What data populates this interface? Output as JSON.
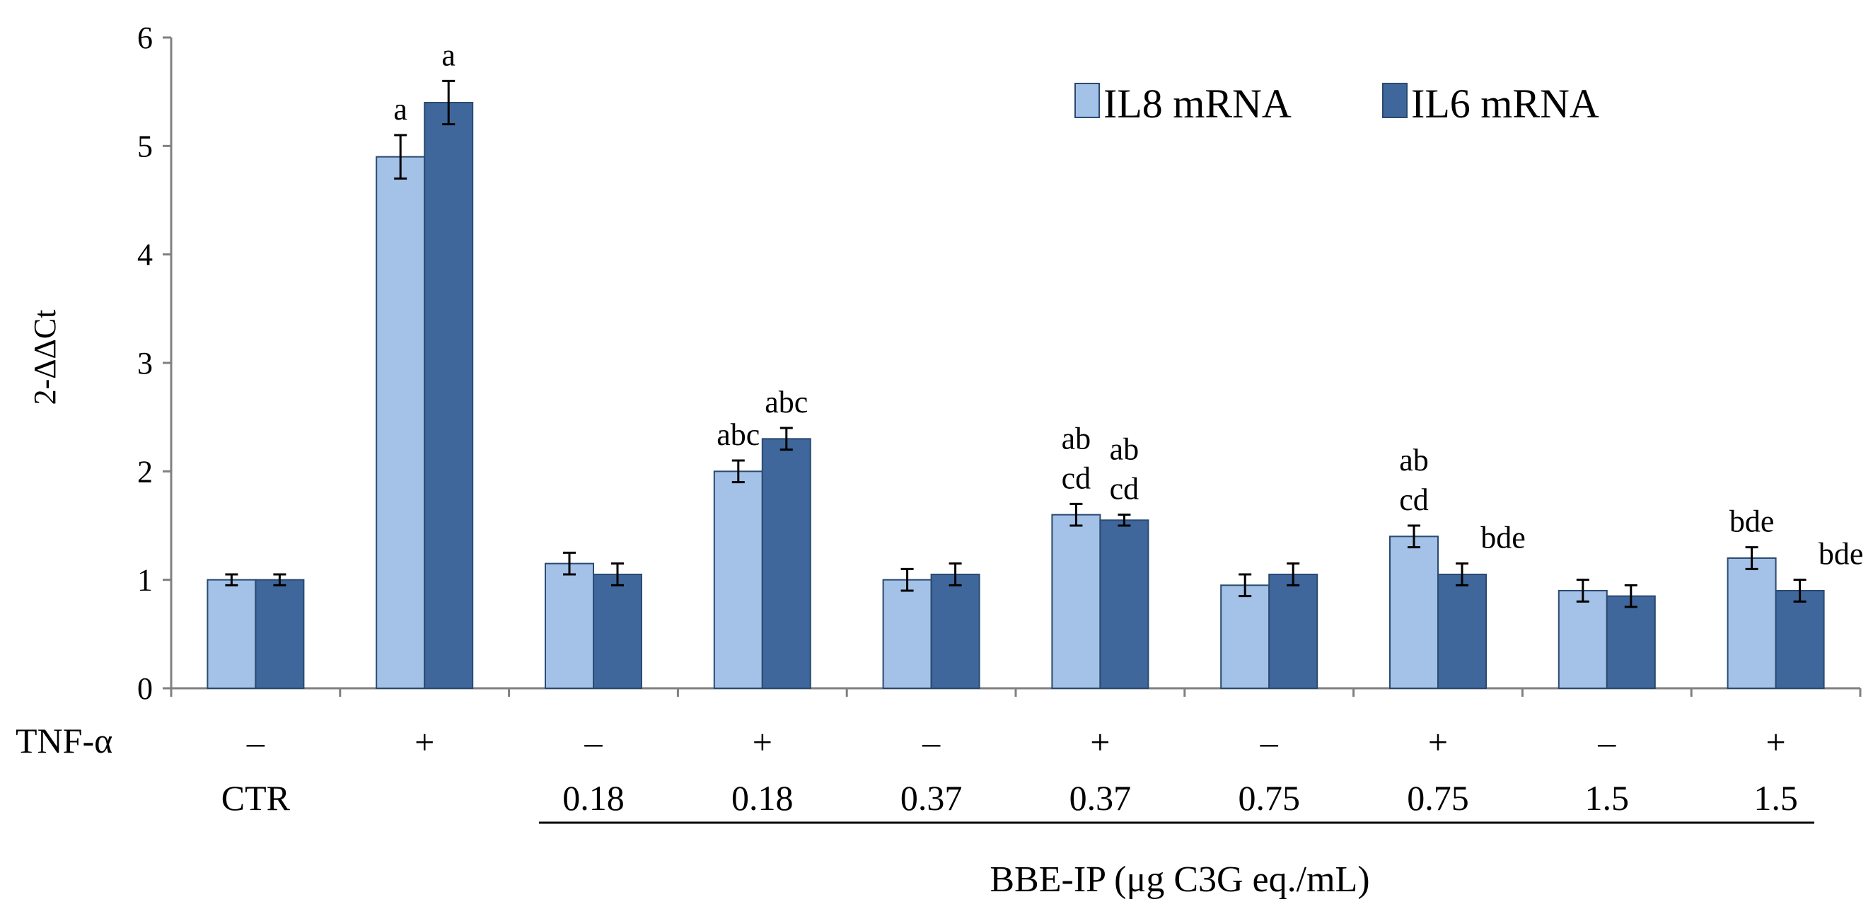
{
  "chart_data": {
    "type": "bar",
    "title": "",
    "xlabel": "BBE-IP (μg C3G eq./mL)",
    "ylabel": "2-ΔΔCt",
    "ylim": [
      0,
      6
    ],
    "yticks": [
      "0",
      "1",
      "2",
      "3",
      "4",
      "5",
      "6"
    ],
    "grid": false,
    "legend_position": "top-right",
    "row_label": "TNF-α",
    "categories": [
      "CTR",
      "+",
      "0.18",
      "0.18",
      "0.37",
      "0.37",
      "0.75",
      "0.75",
      "1.5",
      "1.5"
    ],
    "tnf": [
      "–",
      "+",
      "–",
      "+",
      "–",
      "+",
      "–",
      "+",
      "–",
      "+"
    ],
    "dose": [
      "CTR",
      "",
      "0.18",
      "0.18",
      "0.37",
      "0.37",
      "0.75",
      "0.75",
      "1.5",
      "1.5"
    ],
    "series": [
      {
        "name": "IL8 mRNA",
        "color": "#a4c1e7",
        "values": [
          1.0,
          4.9,
          1.15,
          2.0,
          1.0,
          1.6,
          0.95,
          1.4,
          0.9,
          1.2
        ],
        "errors": [
          0.05,
          0.2,
          0.1,
          0.1,
          0.1,
          0.1,
          0.1,
          0.1,
          0.1,
          0.1
        ],
        "labels": [
          "",
          "a",
          "",
          "abc",
          "",
          "ab\ncd",
          "",
          "ab\ncd",
          "",
          "bde"
        ]
      },
      {
        "name": "IL6 mRNA",
        "color": "#3f679c",
        "values": [
          1.0,
          5.4,
          1.05,
          2.3,
          1.05,
          1.55,
          1.05,
          1.05,
          0.85,
          0.9
        ],
        "errors": [
          0.05,
          0.2,
          0.1,
          0.1,
          0.1,
          0.05,
          0.1,
          0.1,
          0.1,
          0.1
        ],
        "labels": [
          "",
          "a",
          "",
          "abc",
          "",
          "ab\ncd",
          "",
          "bde",
          "",
          "bde"
        ]
      }
    ]
  }
}
